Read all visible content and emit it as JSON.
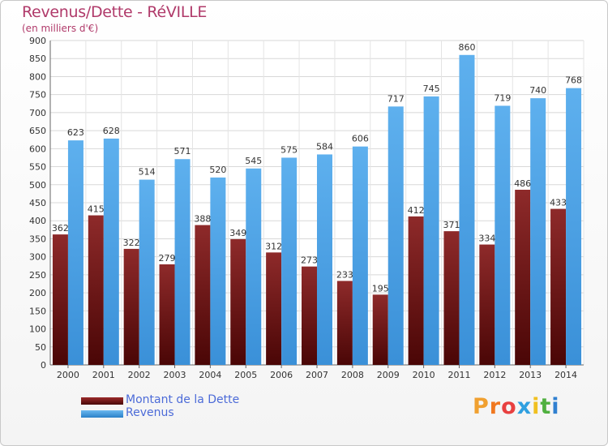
{
  "header": {
    "title": "Revenus/Dette - RéVILLE",
    "subtitle": "(en milliers d'€)"
  },
  "legend": [
    {
      "label": "Montant de la Dette",
      "color": "#7a1010"
    },
    {
      "label": "Revenus",
      "color": "#4aa0e6"
    }
  ],
  "logo": {
    "text": "Proxiti",
    "colors": [
      "#f0a030",
      "#f07820",
      "#e84040",
      "#30a0e0",
      "#f0c020",
      "#50b040",
      "#3080d0"
    ]
  },
  "chart_data": {
    "type": "bar",
    "title": "Revenus/Dette - RéVILLE",
    "subtitle": "(en milliers d'€)",
    "categories": [
      "2000",
      "2001",
      "2002",
      "2003",
      "2004",
      "2005",
      "2006",
      "2007",
      "2008",
      "2009",
      "2010",
      "2011",
      "2012",
      "2013",
      "2014"
    ],
    "series": [
      {
        "name": "Montant de la Dette",
        "color": "#7a1010",
        "values": [
          362,
          415,
          322,
          279,
          388,
          349,
          312,
          273,
          233,
          195,
          412,
          371,
          334,
          486,
          433
        ]
      },
      {
        "name": "Revenus",
        "color": "#4aa0e6",
        "values": [
          623,
          628,
          514,
          571,
          520,
          545,
          575,
          584,
          606,
          717,
          745,
          860,
          719,
          740,
          768
        ]
      }
    ],
    "ylim": [
      0,
      900
    ],
    "yticks": [
      0,
      50,
      100,
      150,
      200,
      250,
      300,
      350,
      400,
      450,
      500,
      550,
      600,
      650,
      700,
      750,
      800,
      850,
      900
    ],
    "grid": true,
    "legend_position": "bottom-left"
  }
}
